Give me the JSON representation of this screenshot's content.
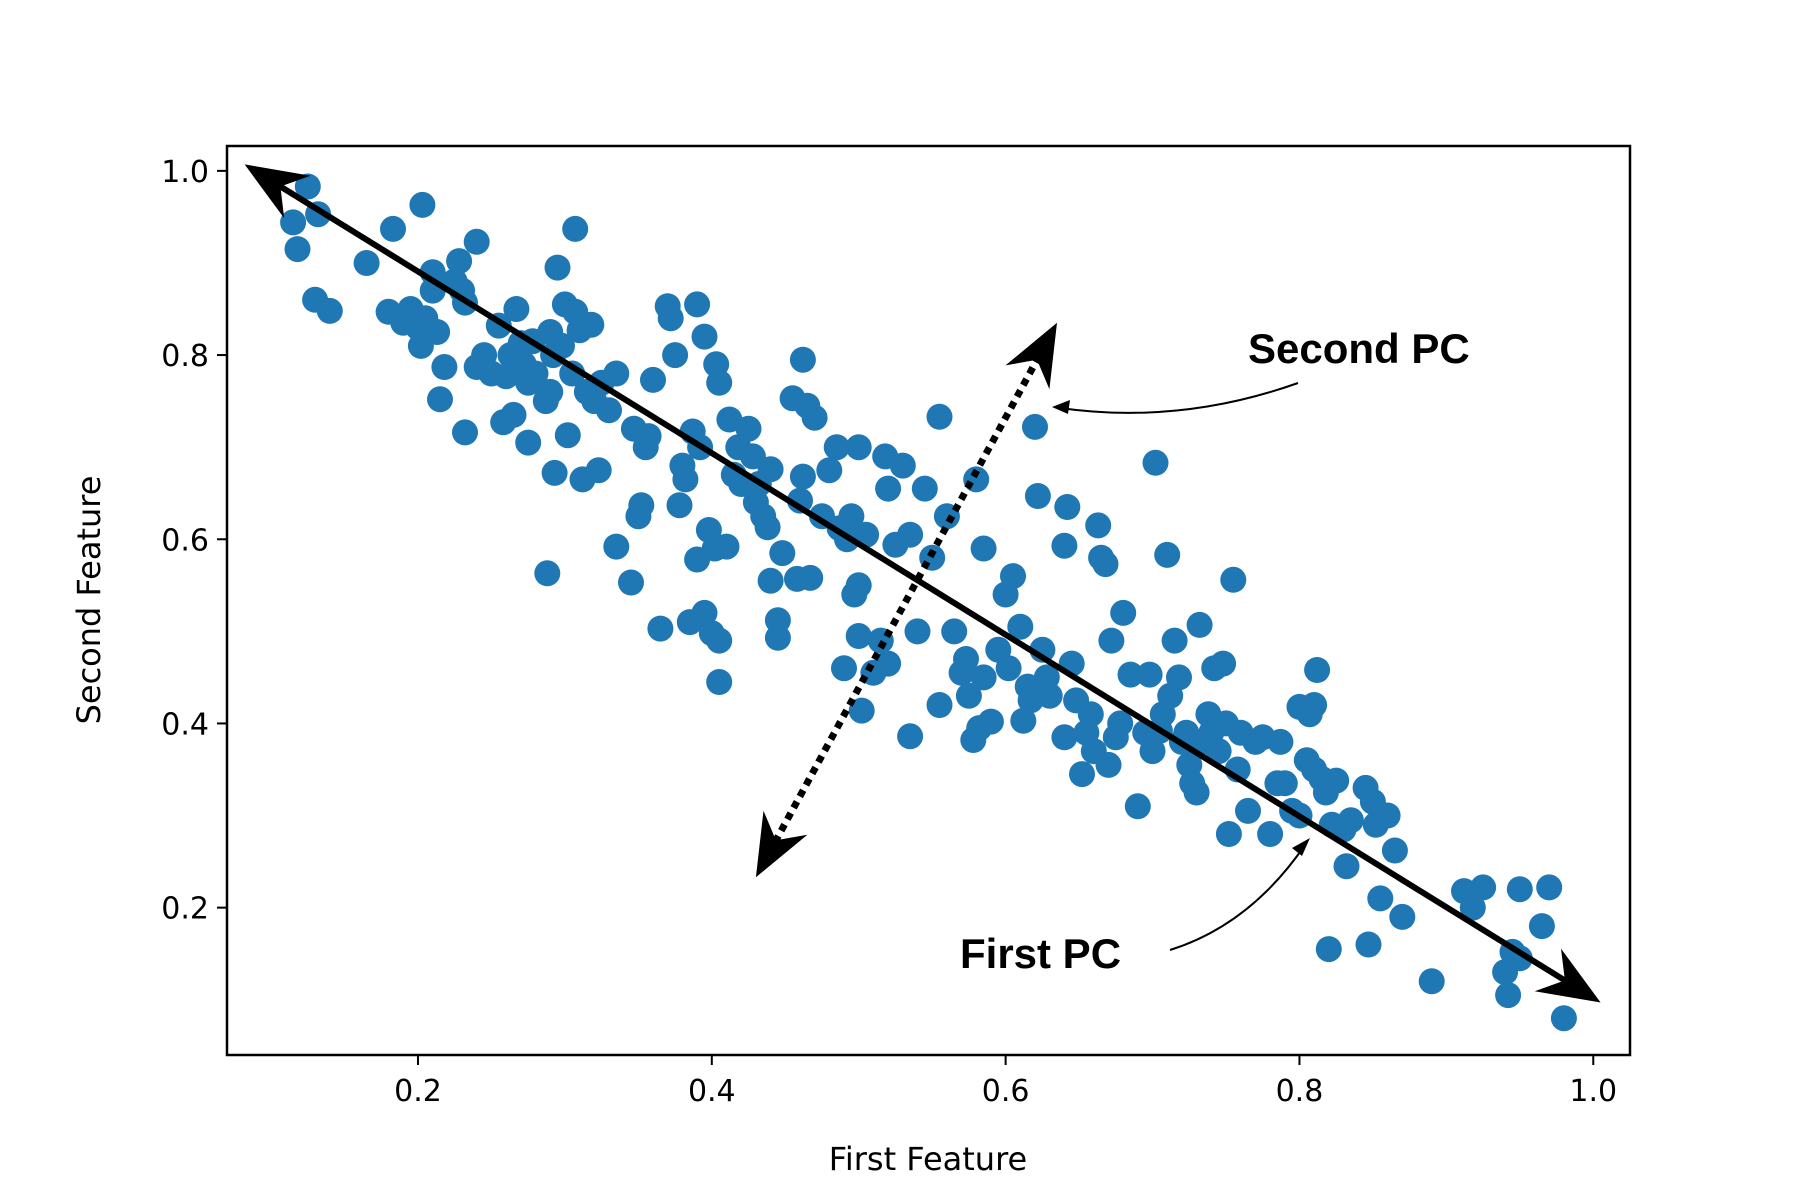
{
  "chart_data": {
    "type": "scatter",
    "title": "",
    "xlabel": "First Feature",
    "ylabel": "Second Feature",
    "xlim": [
      0.07,
      1.025
    ],
    "ylim": [
      0.04,
      1.027
    ],
    "xticks": [
      0.2,
      0.4,
      0.6,
      0.8,
      1.0
    ],
    "yticks": [
      0.2,
      0.4,
      0.6,
      0.8,
      1.0
    ],
    "xtick_labels": [
      "0.2",
      "0.4",
      "0.6",
      "0.8",
      "1.0"
    ],
    "ytick_labels": [
      "0.2",
      "0.4",
      "0.6",
      "0.8",
      "1.0"
    ],
    "grid": false,
    "point_color": "#1f77b4",
    "annotations": {
      "first_pc_label": "First PC",
      "second_pc_label": "Second PC"
    },
    "pc_axes": {
      "first_pc": {
        "from": [
          0.082,
          1.007
        ],
        "to": [
          1.005,
          0.097
        ],
        "style": "solid"
      },
      "second_pc": {
        "from": [
          0.43,
          0.233
        ],
        "to": [
          0.635,
          0.835
        ],
        "style": "dotted"
      }
    },
    "points": [
      [
        0.115,
        0.944
      ],
      [
        0.118,
        0.915
      ],
      [
        0.125,
        0.983
      ],
      [
        0.132,
        0.953
      ],
      [
        0.13,
        0.86
      ],
      [
        0.14,
        0.848
      ],
      [
        0.165,
        0.9
      ],
      [
        0.183,
        0.937
      ],
      [
        0.18,
        0.847
      ],
      [
        0.19,
        0.835
      ],
      [
        0.195,
        0.85
      ],
      [
        0.2,
        0.83
      ],
      [
        0.202,
        0.81
      ],
      [
        0.203,
        0.963
      ],
      [
        0.205,
        0.84
      ],
      [
        0.21,
        0.87
      ],
      [
        0.21,
        0.89
      ],
      [
        0.213,
        0.825
      ],
      [
        0.215,
        0.752
      ],
      [
        0.218,
        0.787
      ],
      [
        0.225,
        0.88
      ],
      [
        0.228,
        0.902
      ],
      [
        0.23,
        0.87
      ],
      [
        0.232,
        0.857
      ],
      [
        0.232,
        0.716
      ],
      [
        0.24,
        0.923
      ],
      [
        0.24,
        0.787
      ],
      [
        0.245,
        0.8
      ],
      [
        0.25,
        0.78
      ],
      [
        0.255,
        0.832
      ],
      [
        0.258,
        0.727
      ],
      [
        0.26,
        0.777
      ],
      [
        0.263,
        0.8
      ],
      [
        0.265,
        0.735
      ],
      [
        0.267,
        0.85
      ],
      [
        0.27,
        0.813
      ],
      [
        0.272,
        0.79
      ],
      [
        0.275,
        0.77
      ],
      [
        0.275,
        0.705
      ],
      [
        0.278,
        0.815
      ],
      [
        0.28,
        0.78
      ],
      [
        0.287,
        0.75
      ],
      [
        0.288,
        0.563
      ],
      [
        0.29,
        0.825
      ],
      [
        0.29,
        0.76
      ],
      [
        0.292,
        0.8
      ],
      [
        0.293,
        0.672
      ],
      [
        0.295,
        0.895
      ],
      [
        0.298,
        0.81
      ],
      [
        0.3,
        0.855
      ],
      [
        0.302,
        0.713
      ],
      [
        0.305,
        0.78
      ],
      [
        0.307,
        0.937
      ],
      [
        0.307,
        0.847
      ],
      [
        0.31,
        0.827
      ],
      [
        0.312,
        0.665
      ],
      [
        0.315,
        0.76
      ],
      [
        0.318,
        0.833
      ],
      [
        0.32,
        0.75
      ],
      [
        0.323,
        0.675
      ],
      [
        0.325,
        0.77
      ],
      [
        0.33,
        0.74
      ],
      [
        0.335,
        0.78
      ],
      [
        0.335,
        0.592
      ],
      [
        0.345,
        0.553
      ],
      [
        0.347,
        0.72
      ],
      [
        0.35,
        0.625
      ],
      [
        0.352,
        0.637
      ],
      [
        0.355,
        0.7
      ],
      [
        0.357,
        0.712
      ],
      [
        0.36,
        0.773
      ],
      [
        0.365,
        0.503
      ],
      [
        0.37,
        0.853
      ],
      [
        0.372,
        0.84
      ],
      [
        0.375,
        0.8
      ],
      [
        0.378,
        0.637
      ],
      [
        0.38,
        0.68
      ],
      [
        0.382,
        0.665
      ],
      [
        0.385,
        0.51
      ],
      [
        0.387,
        0.717
      ],
      [
        0.39,
        0.855
      ],
      [
        0.39,
        0.578
      ],
      [
        0.392,
        0.7
      ],
      [
        0.395,
        0.82
      ],
      [
        0.395,
        0.52
      ],
      [
        0.398,
        0.61
      ],
      [
        0.4,
        0.498
      ],
      [
        0.402,
        0.59
      ],
      [
        0.403,
        0.79
      ],
      [
        0.405,
        0.77
      ],
      [
        0.405,
        0.49
      ],
      [
        0.405,
        0.445
      ],
      [
        0.41,
        0.592
      ],
      [
        0.412,
        0.73
      ],
      [
        0.415,
        0.67
      ],
      [
        0.418,
        0.7
      ],
      [
        0.42,
        0.66
      ],
      [
        0.425,
        0.72
      ],
      [
        0.428,
        0.69
      ],
      [
        0.43,
        0.64
      ],
      [
        0.432,
        0.66
      ],
      [
        0.435,
        0.625
      ],
      [
        0.438,
        0.613
      ],
      [
        0.44,
        0.676
      ],
      [
        0.44,
        0.555
      ],
      [
        0.445,
        0.512
      ],
      [
        0.445,
        0.493
      ],
      [
        0.448,
        0.585
      ],
      [
        0.455,
        0.753
      ],
      [
        0.458,
        0.557
      ],
      [
        0.46,
        0.642
      ],
      [
        0.462,
        0.668
      ],
      [
        0.462,
        0.795
      ],
      [
        0.465,
        0.745
      ],
      [
        0.467,
        0.558
      ],
      [
        0.47,
        0.732
      ],
      [
        0.475,
        0.625
      ],
      [
        0.48,
        0.675
      ],
      [
        0.485,
        0.7
      ],
      [
        0.487,
        0.612
      ],
      [
        0.49,
        0.46
      ],
      [
        0.492,
        0.6
      ],
      [
        0.495,
        0.625
      ],
      [
        0.497,
        0.54
      ],
      [
        0.5,
        0.495
      ],
      [
        0.5,
        0.7
      ],
      [
        0.5,
        0.55
      ],
      [
        0.502,
        0.414
      ],
      [
        0.505,
        0.605
      ],
      [
        0.51,
        0.455
      ],
      [
        0.515,
        0.49
      ],
      [
        0.518,
        0.69
      ],
      [
        0.52,
        0.465
      ],
      [
        0.52,
        0.655
      ],
      [
        0.525,
        0.594
      ],
      [
        0.53,
        0.68
      ],
      [
        0.535,
        0.605
      ],
      [
        0.535,
        0.386
      ],
      [
        0.54,
        0.5
      ],
      [
        0.545,
        0.655
      ],
      [
        0.55,
        0.58
      ],
      [
        0.555,
        0.733
      ],
      [
        0.555,
        0.42
      ],
      [
        0.56,
        0.625
      ],
      [
        0.565,
        0.5
      ],
      [
        0.57,
        0.455
      ],
      [
        0.573,
        0.47
      ],
      [
        0.575,
        0.43
      ],
      [
        0.578,
        0.382
      ],
      [
        0.58,
        0.665
      ],
      [
        0.582,
        0.395
      ],
      [
        0.585,
        0.59
      ],
      [
        0.585,
        0.45
      ],
      [
        0.59,
        0.402
      ],
      [
        0.595,
        0.48
      ],
      [
        0.6,
        0.54
      ],
      [
        0.602,
        0.46
      ],
      [
        0.605,
        0.56
      ],
      [
        0.61,
        0.505
      ],
      [
        0.612,
        0.403
      ],
      [
        0.615,
        0.44
      ],
      [
        0.617,
        0.425
      ],
      [
        0.62,
        0.722
      ],
      [
        0.622,
        0.647
      ],
      [
        0.625,
        0.48
      ],
      [
        0.628,
        0.45
      ],
      [
        0.63,
        0.43
      ],
      [
        0.64,
        0.385
      ],
      [
        0.64,
        0.593
      ],
      [
        0.642,
        0.635
      ],
      [
        0.645,
        0.465
      ],
      [
        0.648,
        0.425
      ],
      [
        0.652,
        0.345
      ],
      [
        0.655,
        0.39
      ],
      [
        0.658,
        0.41
      ],
      [
        0.66,
        0.37
      ],
      [
        0.663,
        0.615
      ],
      [
        0.665,
        0.58
      ],
      [
        0.668,
        0.573
      ],
      [
        0.67,
        0.355
      ],
      [
        0.672,
        0.49
      ],
      [
        0.675,
        0.385
      ],
      [
        0.678,
        0.4
      ],
      [
        0.68,
        0.52
      ],
      [
        0.685,
        0.453
      ],
      [
        0.69,
        0.31
      ],
      [
        0.695,
        0.39
      ],
      [
        0.698,
        0.453
      ],
      [
        0.7,
        0.37
      ],
      [
        0.702,
        0.683
      ],
      [
        0.705,
        0.392
      ],
      [
        0.707,
        0.41
      ],
      [
        0.71,
        0.583
      ],
      [
        0.712,
        0.43
      ],
      [
        0.715,
        0.49
      ],
      [
        0.718,
        0.45
      ],
      [
        0.72,
        0.38
      ],
      [
        0.723,
        0.39
      ],
      [
        0.725,
        0.355
      ],
      [
        0.727,
        0.335
      ],
      [
        0.73,
        0.325
      ],
      [
        0.732,
        0.507
      ],
      [
        0.735,
        0.38
      ],
      [
        0.738,
        0.41
      ],
      [
        0.74,
        0.39
      ],
      [
        0.742,
        0.46
      ],
      [
        0.745,
        0.37
      ],
      [
        0.748,
        0.465
      ],
      [
        0.75,
        0.4
      ],
      [
        0.752,
        0.28
      ],
      [
        0.755,
        0.556
      ],
      [
        0.758,
        0.35
      ],
      [
        0.76,
        0.39
      ],
      [
        0.765,
        0.305
      ],
      [
        0.77,
        0.38
      ],
      [
        0.775,
        0.385
      ],
      [
        0.78,
        0.28
      ],
      [
        0.785,
        0.335
      ],
      [
        0.787,
        0.38
      ],
      [
        0.79,
        0.335
      ],
      [
        0.795,
        0.305
      ],
      [
        0.8,
        0.418
      ],
      [
        0.8,
        0.3
      ],
      [
        0.805,
        0.36
      ],
      [
        0.807,
        0.41
      ],
      [
        0.81,
        0.35
      ],
      [
        0.81,
        0.42
      ],
      [
        0.812,
        0.458
      ],
      [
        0.815,
        0.34
      ],
      [
        0.818,
        0.325
      ],
      [
        0.82,
        0.155
      ],
      [
        0.822,
        0.29
      ],
      [
        0.825,
        0.338
      ],
      [
        0.83,
        0.285
      ],
      [
        0.832,
        0.245
      ],
      [
        0.835,
        0.295
      ],
      [
        0.845,
        0.33
      ],
      [
        0.847,
        0.16
      ],
      [
        0.85,
        0.315
      ],
      [
        0.852,
        0.29
      ],
      [
        0.855,
        0.21
      ],
      [
        0.86,
        0.3
      ],
      [
        0.865,
        0.262
      ],
      [
        0.87,
        0.19
      ],
      [
        0.89,
        0.12
      ],
      [
        0.912,
        0.218
      ],
      [
        0.918,
        0.2
      ],
      [
        0.925,
        0.222
      ],
      [
        0.94,
        0.13
      ],
      [
        0.942,
        0.105
      ],
      [
        0.945,
        0.152
      ],
      [
        0.95,
        0.22
      ],
      [
        0.95,
        0.145
      ],
      [
        0.965,
        0.18
      ],
      [
        0.97,
        0.222
      ],
      [
        0.98,
        0.08
      ]
    ]
  }
}
